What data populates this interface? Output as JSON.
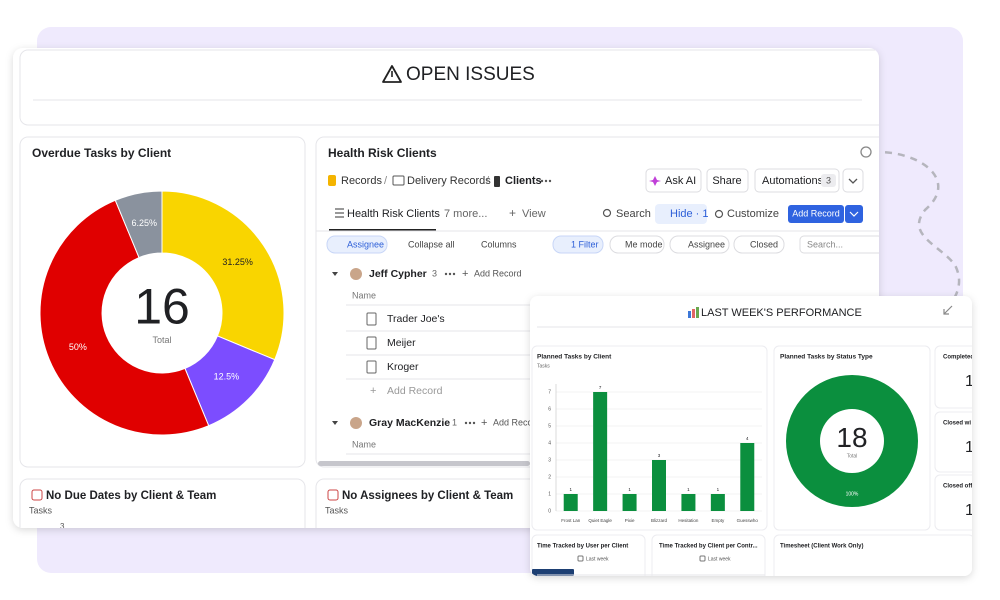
{
  "header": {
    "title": "OPEN ISSUES"
  },
  "chart_data": [
    {
      "type": "pie",
      "title": "Overdue Tasks by Client",
      "values": [
        31.25,
        12.5,
        50,
        6.25
      ],
      "value_labels": [
        "31.25%",
        "12.5%",
        "50%",
        "6.25%"
      ],
      "colors": [
        "#f9d500",
        "#7c4dff",
        "#e00000",
        "#8a929e"
      ],
      "total": 16,
      "total_label": "Total"
    },
    {
      "type": "bar",
      "title": "Planned Tasks by Client",
      "y_label": "Tasks",
      "categories": [
        "Frost Lan",
        "Quiet Eagle",
        "Pixie",
        "Blizzard",
        "Hesitation",
        "Empty",
        "Guesswho"
      ],
      "values": [
        1,
        7,
        1,
        3,
        1,
        1,
        4
      ],
      "color": "#0b8f3e",
      "ylim": [
        0,
        7
      ],
      "yticks": [
        0,
        1,
        2,
        3,
        4,
        5,
        6,
        7
      ],
      "grid": true
    },
    {
      "type": "pie",
      "title": "Planned Tasks by Status Type",
      "values": [
        100
      ],
      "value_labels": [
        "100%"
      ],
      "colors": [
        "#0b8f3e"
      ],
      "total": 18,
      "total_label": "Total"
    }
  ],
  "health": {
    "title": "Health Risk Clients",
    "breadcrumb": [
      "Records",
      "Delivery Records",
      "Clients"
    ],
    "actions": [
      "Ask AI",
      "Share",
      "Automations"
    ],
    "automations_count": 3,
    "tabs": [
      "Health Risk Clients",
      "7 more...",
      "View"
    ],
    "tools": [
      "Search",
      "Hide · 1",
      "Customize"
    ],
    "add": "Add Record",
    "filters_left": [
      "Assignee",
      "Collapse all",
      "Columns"
    ],
    "filters_right": [
      "1 Filter",
      "Me mode",
      "Assignee",
      "Closed"
    ],
    "search_placeholder": "Search...",
    "groups": [
      {
        "name": "Jeff Cypher",
        "count": 3,
        "add": "Add Record",
        "column": "Name",
        "rows": [
          "Trader Joe's",
          "Meijer",
          "Kroger"
        ],
        "add_row": "Add Record"
      },
      {
        "name": "Gray MacKenzie",
        "count": 1,
        "add": "Add Record",
        "column": "Name"
      }
    ]
  },
  "bottom": [
    {
      "title": "No Due Dates by Client & Team",
      "axis": "Tasks",
      "tick": 3
    },
    {
      "title": "No Assignees by Client & Team",
      "axis": "Tasks"
    }
  ],
  "popup": {
    "title": "LAST WEEK'S PERFORMANCE",
    "stats": [
      {
        "title": "Completed",
        "value": 1
      },
      {
        "title": "Closed wi",
        "value": 1
      },
      {
        "title": "Closed off",
        "value": 1
      }
    ],
    "bottom": [
      {
        "title": "Time Tracked by User per Client",
        "range": "Last week"
      },
      {
        "title": "Time Tracked by Client per Contr...",
        "range": "Last week"
      },
      {
        "title": "Timesheet (Client Work Only)"
      }
    ]
  }
}
